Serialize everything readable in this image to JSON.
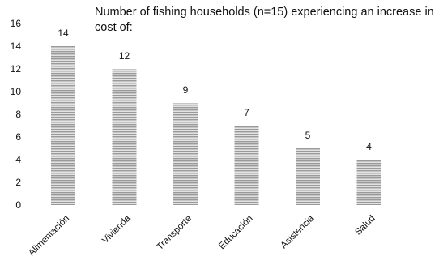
{
  "chart_data": {
    "type": "bar",
    "title": "Number of  fishing households (n=15) experiencing an increase in cost of:",
    "categories": [
      "Alimentación",
      "Vivienda",
      "Transporte",
      "Educación",
      "Asistencia",
      "Salud"
    ],
    "values": [
      14,
      12,
      9,
      7,
      5,
      4
    ],
    "ylim": [
      0,
      16
    ],
    "yticks": [
      0,
      2,
      4,
      6,
      8,
      10,
      12,
      14,
      16
    ],
    "xlabel": "",
    "ylabel": "",
    "grid": false,
    "legend": "none",
    "bar_style": "horizontal gray stripes",
    "bar_color": "#9a9a9a",
    "bar_stripe_color": "#e2e2e2"
  }
}
